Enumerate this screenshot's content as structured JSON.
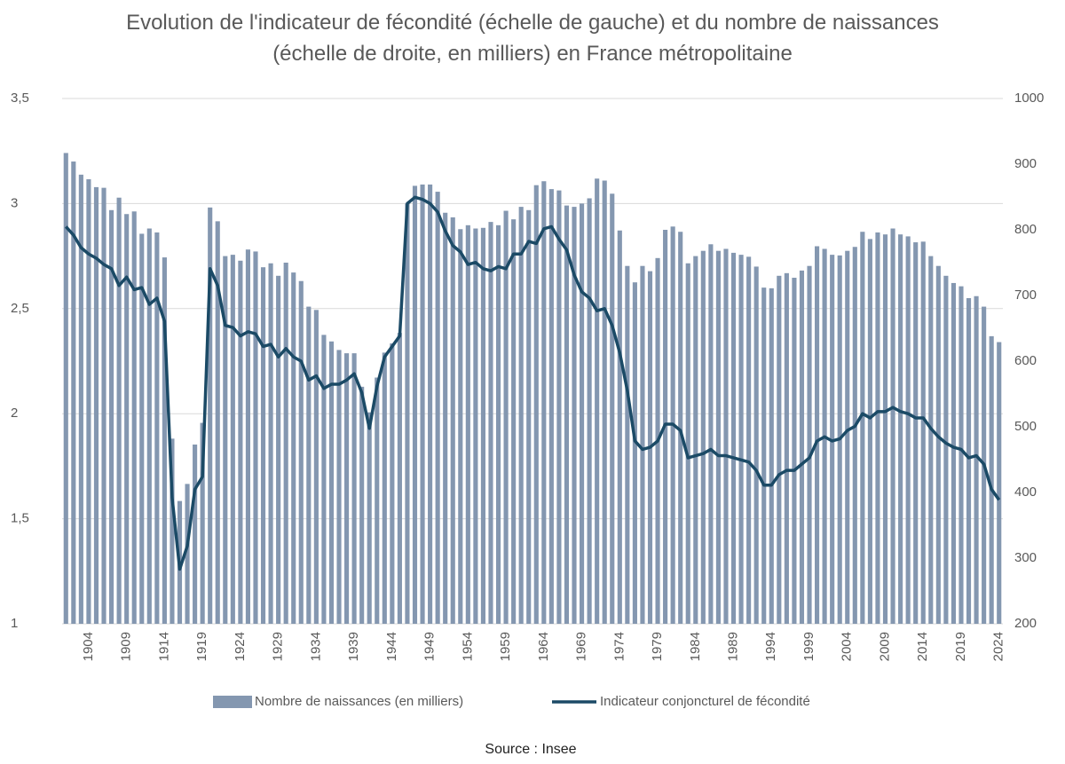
{
  "chart_data": {
    "type": "combo",
    "title": "Evolution de l'indicateur de fécondité (échelle de gauche) et du nombre de naissances (échelle de droite, en milliers) en France métropolitaine",
    "source": "Source : Insee",
    "categories": [
      null,
      null,
      null,
      "1904",
      null,
      null,
      null,
      null,
      "1909",
      null,
      null,
      null,
      null,
      "1914",
      null,
      null,
      null,
      null,
      "1919",
      null,
      null,
      null,
      null,
      "1924",
      null,
      null,
      null,
      null,
      "1929",
      null,
      null,
      null,
      null,
      "1934",
      null,
      null,
      null,
      null,
      "1939",
      null,
      null,
      null,
      null,
      "1944",
      null,
      null,
      null,
      null,
      "1949",
      null,
      null,
      null,
      null,
      "1954",
      null,
      null,
      null,
      null,
      "1959",
      null,
      null,
      null,
      null,
      "1964",
      null,
      null,
      null,
      null,
      "1969",
      null,
      null,
      null,
      null,
      "1974",
      null,
      null,
      null,
      null,
      "1979",
      null,
      null,
      null,
      null,
      "1984",
      null,
      null,
      null,
      null,
      "1989",
      null,
      null,
      null,
      null,
      "1994",
      null,
      null,
      null,
      null,
      "1999",
      null,
      null,
      null,
      null,
      "2004",
      null,
      null,
      null,
      null,
      "2009",
      null,
      null,
      null,
      null,
      "2014",
      null,
      null,
      null,
      null,
      "2019",
      null,
      null,
      null,
      null,
      "2024"
    ],
    "series": [
      {
        "name": "Nombre de naissances (en milliers)",
        "type": "bar",
        "axis": "y2",
        "color": "#8497b0",
        "values": [
          917,
          904,
          884,
          877,
          865,
          864,
          830,
          849,
          824,
          828,
          794,
          802,
          796,
          758,
          482,
          387,
          413,
          473,
          506,
          834,
          813,
          760,
          762,
          753,
          770,
          767,
          743,
          749,
          730,
          750,
          735,
          722,
          683,
          678,
          640,
          630,
          617,
          612,
          612,
          561,
          522,
          575,
          613,
          627,
          643,
          840,
          867,
          869,
          869,
          858,
          826,
          819,
          801,
          807,
          802,
          803,
          812,
          807,
          829,
          816,
          835,
          830,
          868,
          874,
          862,
          860,
          837,
          835,
          840,
          848,
          878,
          875,
          855,
          799,
          745,
          720,
          745,
          737,
          757,
          800,
          805,
          797,
          749,
          760,
          768,
          778,
          768,
          771,
          765,
          762,
          759,
          744,
          712,
          711,
          730,
          734,
          727,
          738,
          745,
          775,
          771,
          762,
          761,
          768,
          774,
          797,
          786,
          796,
          793,
          802,
          793,
          790,
          781,
          782,
          760,
          745,
          730,
          719,
          714,
          696,
          699,
          683,
          638,
          629
        ]
      },
      {
        "name": "Indicateur conjoncturel de fécondité",
        "type": "line",
        "axis": "y",
        "color": "#1b4a66",
        "values": [
          2.89,
          2.85,
          2.79,
          2.76,
          2.74,
          2.71,
          2.69,
          2.61,
          2.65,
          2.59,
          2.6,
          2.52,
          2.55,
          2.44,
          1.6,
          1.26,
          1.37,
          1.64,
          1.7,
          2.69,
          2.61,
          2.42,
          2.41,
          2.37,
          2.39,
          2.38,
          2.32,
          2.33,
          2.27,
          2.31,
          2.27,
          2.25,
          2.16,
          2.18,
          2.12,
          2.14,
          2.14,
          2.16,
          2.19,
          2.1,
          1.93,
          2.13,
          2.27,
          2.32,
          2.37,
          3.0,
          3.03,
          3.02,
          3.0,
          2.96,
          2.87,
          2.8,
          2.77,
          2.71,
          2.72,
          2.69,
          2.68,
          2.7,
          2.69,
          2.76,
          2.76,
          2.82,
          2.81,
          2.88,
          2.89,
          2.83,
          2.78,
          2.66,
          2.58,
          2.55,
          2.49,
          2.5,
          2.42,
          2.29,
          2.11,
          1.87,
          1.83,
          1.84,
          1.87,
          1.95,
          1.95,
          1.92,
          1.79,
          1.8,
          1.81,
          1.83,
          1.8,
          1.8,
          1.79,
          1.78,
          1.77,
          1.73,
          1.66,
          1.66,
          1.71,
          1.73,
          1.73,
          1.76,
          1.79,
          1.87,
          1.89,
          1.87,
          1.88,
          1.92,
          1.94,
          2.0,
          1.98,
          2.01,
          2.01,
          2.03,
          2.01,
          2.0,
          1.98,
          1.98,
          1.93,
          1.89,
          1.86,
          1.84,
          1.83,
          1.79,
          1.8,
          1.76,
          1.64,
          1.59
        ]
      }
    ],
    "ylim": [
      1,
      3.5
    ],
    "yticks": [
      1,
      {
        "value": 1.5,
        "label": "1,5"
      },
      2,
      {
        "value": 2.5,
        "label": "2,5"
      },
      3,
      {
        "value": 3.5,
        "label": "3,5"
      }
    ],
    "y2lim": [
      200,
      1000
    ],
    "y2ticks": [
      200,
      300,
      400,
      500,
      600,
      700,
      800,
      900,
      1000
    ],
    "grid": true,
    "legend": "bottom"
  }
}
